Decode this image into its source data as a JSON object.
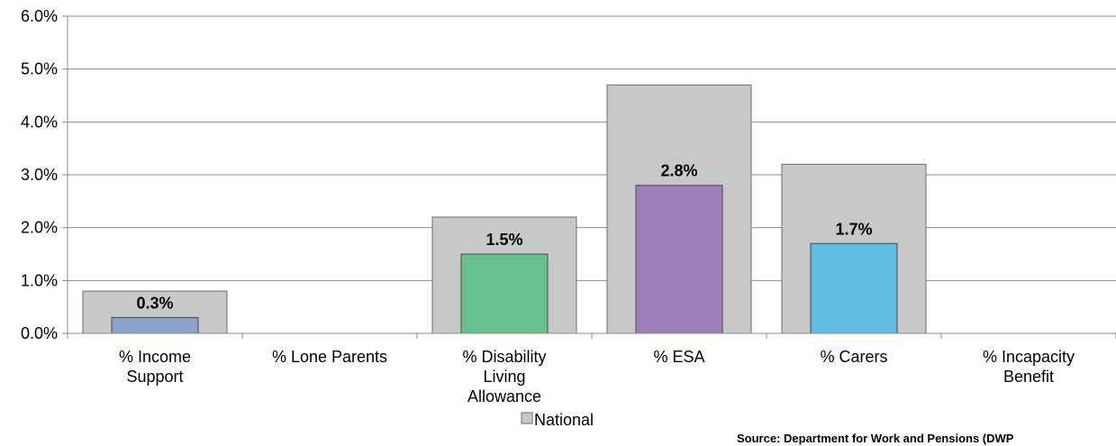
{
  "chart_data": {
    "type": "bar",
    "categories": [
      [
        "% Income",
        "Support"
      ],
      [
        "% Lone Parents"
      ],
      [
        "% Disability",
        "Living",
        "Allowance"
      ],
      [
        "% ESA"
      ],
      [
        "% Carers"
      ],
      [
        "% Incapacity",
        "Benefit"
      ]
    ],
    "series": [
      {
        "name": "National",
        "values": [
          0.8,
          null,
          2.2,
          4.7,
          3.2,
          null
        ],
        "color": "#c8c8c8",
        "stroke": "#6e6e6e"
      },
      {
        "name": "",
        "values": [
          0.3,
          null,
          1.5,
          2.8,
          1.7,
          null
        ],
        "colors": [
          "#8aa2c8",
          null,
          "#66c08e",
          "#9e7fba",
          "#62bde3",
          null
        ],
        "stroke": "#4a4a4a"
      }
    ],
    "data_labels": [
      "0.3%",
      "",
      "1.5%",
      "2.8%",
      "1.7%",
      ""
    ],
    "y_tick_labels": [
      "0.0%",
      "1.0%",
      "2.0%",
      "3.0%",
      "4.0%",
      "5.0%",
      "6.0%"
    ],
    "ylim": [
      0,
      6
    ],
    "ystep": 1,
    "grid": true,
    "legend": {
      "placement": "bottom-center",
      "entries": [
        {
          "label": "National",
          "color": "#c8c8c8"
        }
      ]
    },
    "source": "Source: Department for Work and Pensions (DWP"
  }
}
